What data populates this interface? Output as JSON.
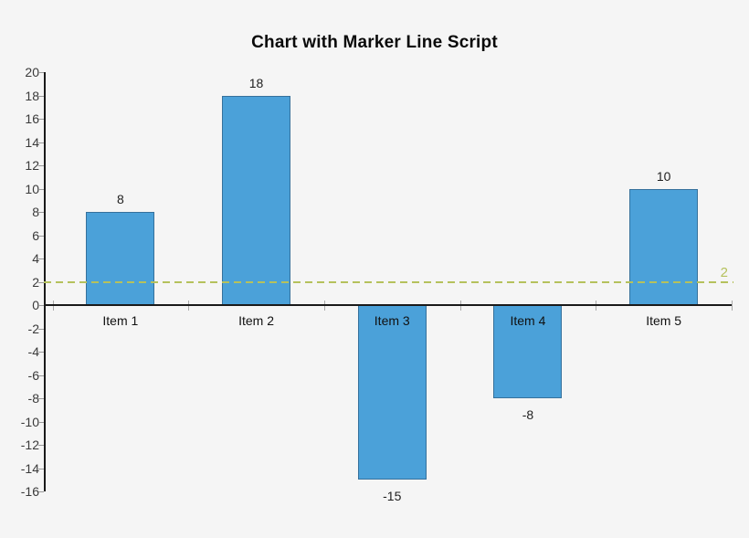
{
  "title": "Chart with Marker Line Script",
  "colors": {
    "background": "#f5f5f5",
    "bar_fill": "#4ba1d9",
    "bar_border": "#36719c",
    "axis": "#1a1a1a",
    "tick": "#9a9a9a",
    "boundary_tick": "#aaaaaa",
    "label_text": "#1f1f1f",
    "marker": "#b5c15c"
  },
  "chart_data": {
    "type": "bar",
    "title": "Chart with Marker Line Script",
    "categories": [
      "Item 1",
      "Item 2",
      "Item 3",
      "Item 4",
      "Item 5"
    ],
    "values": [
      8,
      18,
      -15,
      -8,
      10
    ],
    "bar_labels": [
      "8",
      "18",
      "-15",
      "-8",
      "10"
    ],
    "xlabel": "",
    "ylabel": "",
    "ylim": [
      -16,
      20
    ],
    "ytick_step": 2,
    "ytick_labels": [
      "20",
      "18",
      "16",
      "14",
      "12",
      "10",
      "8",
      "6",
      "4",
      "2",
      "0",
      "-2",
      "-4",
      "-6",
      "-8",
      "-10",
      "-12",
      "-14",
      "-16"
    ],
    "grid": false,
    "legend": false,
    "marker_line": {
      "value": 2,
      "label": "2",
      "style": "dashed"
    }
  }
}
